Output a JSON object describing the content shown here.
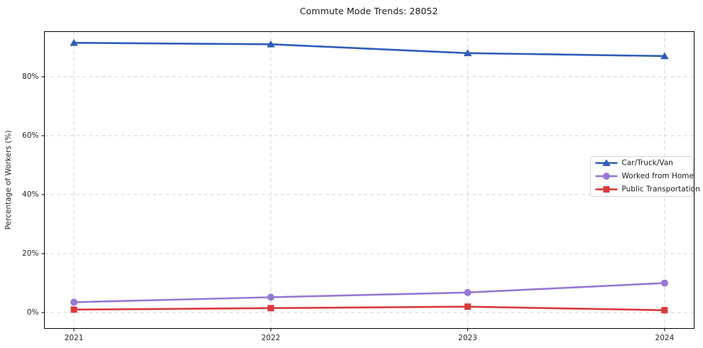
{
  "chart_data": {
    "type": "line",
    "title": "Commute Mode Trends: 28052",
    "ylabel": "Percentage of Workers (%)",
    "xlabel": "",
    "categories": [
      "2021",
      "2022",
      "2023",
      "2024"
    ],
    "series": [
      {
        "name": "Car/Truck/Van",
        "color": "#2e5cb8",
        "marker": "triangle",
        "values": [
          91.5,
          91.0,
          88.0,
          87.0
        ]
      },
      {
        "name": "Worked from Home",
        "color": "#9777d4",
        "marker": "circle",
        "values": [
          3.5,
          5.2,
          6.8,
          10.0
        ]
      },
      {
        "name": "Public Transportation",
        "color": "#d83a3c",
        "marker": "square",
        "values": [
          1.0,
          1.5,
          2.0,
          0.8
        ]
      }
    ],
    "yticks": {
      "values": [
        0,
        20,
        40,
        60,
        80
      ],
      "labels": [
        "0%",
        "20%",
        "40%",
        "60%",
        "80%"
      ]
    },
    "ylim": [
      -5.4,
      95.3
    ],
    "grid": true,
    "grid_style": "dashed",
    "legend_position": "center right",
    "colors": {
      "background": "#ffffff",
      "grid": "#cdcdcd",
      "spine": "#000000",
      "tick_label": "#262626",
      "title": "#1a1a1a",
      "legend_border": "#d4d4d4",
      "legend_background": "#ffffff"
    }
  }
}
